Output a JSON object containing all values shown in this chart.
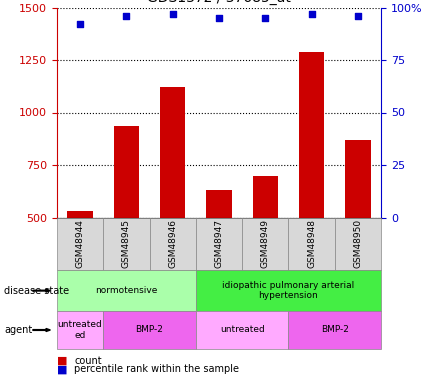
{
  "samples": [
    "GSM48944",
    "GSM48945",
    "GSM48946",
    "GSM48947",
    "GSM48949",
    "GSM48948",
    "GSM48950"
  ],
  "count_values": [
    530,
    935,
    1120,
    630,
    700,
    1290,
    870
  ],
  "percentile_values": [
    92,
    96,
    97,
    95,
    95,
    97,
    96
  ],
  "bar_color": "#cc0000",
  "dot_color": "#0000cc",
  "ylim_left": [
    500,
    1500
  ],
  "ylim_right": [
    0,
    100
  ],
  "yticks_left": [
    500,
    750,
    1000,
    1250,
    1500
  ],
  "yticks_right": [
    0,
    25,
    50,
    75,
    100
  ],
  "disease_state_groups": [
    {
      "label": "normotensive",
      "start": 0,
      "end": 3,
      "color": "#aaffaa"
    },
    {
      "label": "idiopathic pulmonary arterial\nhypertension",
      "start": 3,
      "end": 7,
      "color": "#44ee44"
    }
  ],
  "agent_groups": [
    {
      "label": "untreated\ned",
      "start": 0,
      "end": 1,
      "color": "#ffaaff"
    },
    {
      "label": "BMP-2",
      "start": 1,
      "end": 3,
      "color": "#ee66ee"
    },
    {
      "label": "untreated",
      "start": 3,
      "end": 5,
      "color": "#ffaaff"
    },
    {
      "label": "BMP-2",
      "start": 5,
      "end": 7,
      "color": "#ee66ee"
    }
  ],
  "label_disease_state": "disease state",
  "label_agent": "agent",
  "legend_count": "count",
  "legend_percentile": "percentile rank within the sample",
  "left_axis_color": "#cc0000",
  "right_axis_color": "#0000cc",
  "grid_color": "#000000"
}
